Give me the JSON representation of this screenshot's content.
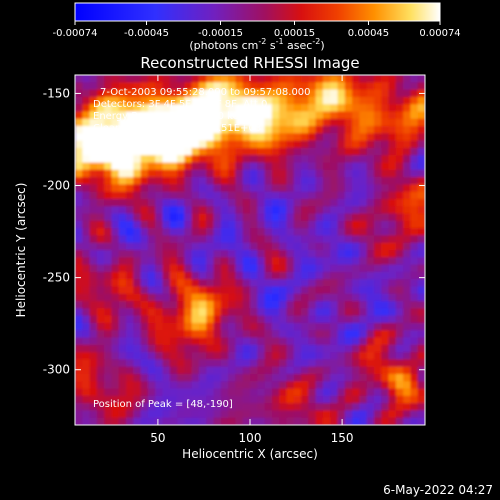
{
  "chart_data": {
    "type": "heatmap",
    "title": "Reconstructed RHESSI Image",
    "xlabel": "Heliocentric X (arcsec)",
    "ylabel": "Heliocentric Y (arcsec)",
    "xlim": [
      5,
      195
    ],
    "ylim": [
      -330,
      -140
    ],
    "xticks": [
      50,
      100,
      150
    ],
    "yticks": [
      -150,
      -200,
      -250,
      -300
    ],
    "grid": false,
    "colorbar": {
      "position": "top",
      "colormap": "blue-purple-red-yellow-white",
      "range": [
        -0.00074,
        0.00074
      ],
      "tick_labels": [
        "-0.00074",
        "-0.00045",
        "-0.00015",
        "0.00015",
        "0.00045",
        "0.00074"
      ],
      "label_text": "(photons cm",
      "label_exp1": "-2",
      "label_mid": " s",
      "label_exp2": "-1",
      "label_mid2": " asec",
      "label_exp3": "-2",
      "label_end": ")"
    },
    "annotations": {
      "time_range": "7-Oct-2003 09:55:28.000 to 09:57:08.000",
      "detectors": "Detectors: 3F 4F 5F 6F 7F 8F, Att 0",
      "energy": "Energy Range: 25.0 - 50.0 keV",
      "method": "Clean",
      "counts": "Total counts: 2.51E+03",
      "peak": "Position of Peak = [48,-190]"
    },
    "emission_regions": [
      {
        "x": 20,
        "y": -180,
        "level": 0.0007
      },
      {
        "x": 45,
        "y": -175,
        "level": 0.00068
      },
      {
        "x": 75,
        "y": -165,
        "level": 0.0006
      },
      {
        "x": 110,
        "y": -160,
        "level": 0.0005
      },
      {
        "x": 150,
        "y": -155,
        "level": 0.00045
      },
      {
        "x": 185,
        "y": -165,
        "level": 0.0004
      },
      {
        "x": 70,
        "y": -270,
        "level": 0.00065
      },
      {
        "x": 20,
        "y": -255,
        "level": 0.0003
      },
      {
        "x": 15,
        "y": -310,
        "level": 0.00035
      },
      {
        "x": 185,
        "y": -215,
        "level": 0.0004
      },
      {
        "x": 180,
        "y": -305,
        "level": 0.00045
      },
      {
        "x": 120,
        "y": -320,
        "level": 0.0003
      }
    ]
  },
  "footer": {
    "date": "6-May-2022 04:27"
  }
}
